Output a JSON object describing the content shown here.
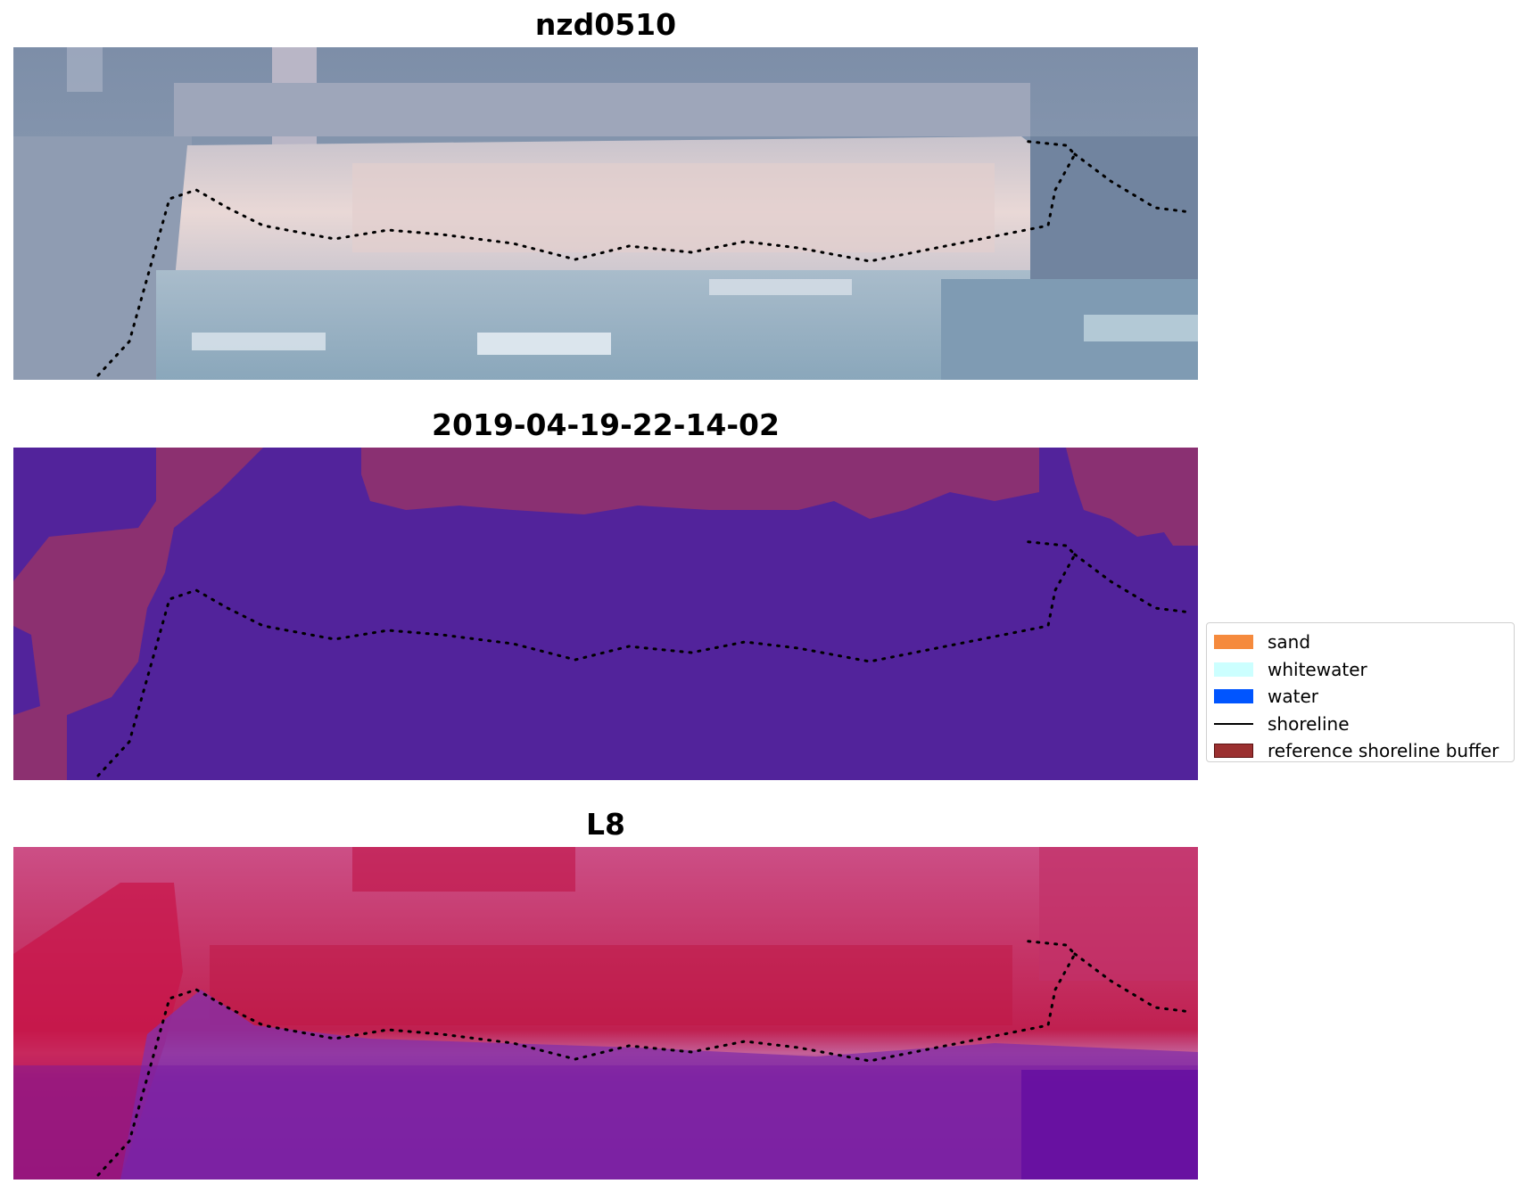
{
  "panels": [
    {
      "id": "rgb",
      "title": "nzd0510"
    },
    {
      "id": "classified",
      "title": "2019-04-19-22-14-02"
    },
    {
      "id": "mndwi",
      "title": "L8"
    }
  ],
  "legend": {
    "items": [
      {
        "label": "sand",
        "type": "patch",
        "color": "#f58a3d",
        "border": "#f58a3d"
      },
      {
        "label": "whitewater",
        "type": "patch",
        "color": "#ccffff",
        "border": "#ccffff"
      },
      {
        "label": "water",
        "type": "patch",
        "color": "#0055ff",
        "border": "#0055ff"
      },
      {
        "label": "shoreline",
        "type": "line",
        "color": "#000000"
      },
      {
        "label": "reference shoreline buffer",
        "type": "patch",
        "color": "#9b3030",
        "border": "#5c1010"
      }
    ]
  },
  "colors": {
    "shoreline": "#000000",
    "classified_water": "#52239b",
    "classified_buffer": "#8c3070"
  }
}
